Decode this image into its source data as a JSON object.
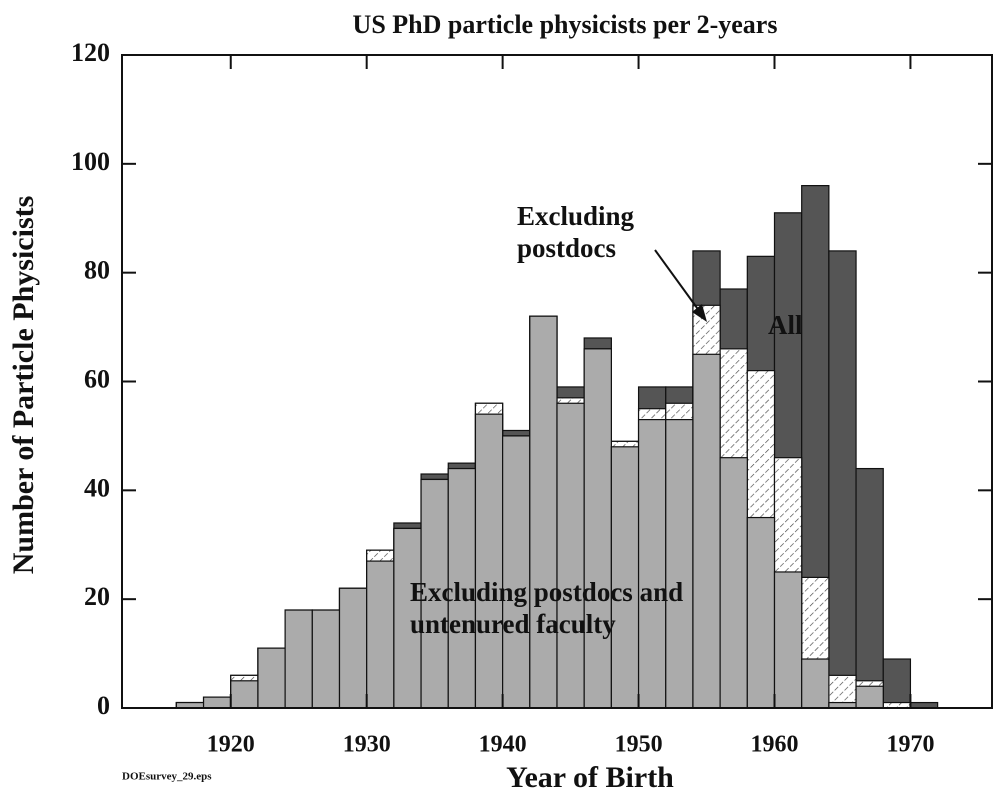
{
  "chart_data": {
    "type": "histogram",
    "title": "US PhD particle physicists per 2-years",
    "x_label": "Year of Birth",
    "y_label": "Number of Particle Physicists",
    "bins": [
      1916,
      1918,
      1920,
      1922,
      1924,
      1926,
      1928,
      1930,
      1932,
      1934,
      1936,
      1938,
      1940,
      1942,
      1944,
      1946,
      1948,
      1950,
      1952,
      1954,
      1956,
      1958,
      1960,
      1962,
      1964,
      1966,
      1968,
      1970,
      1972
    ],
    "series": [
      {
        "name": "All",
        "color": "#555555",
        "hatch": false,
        "values": [
          1,
          2,
          6,
          11,
          18,
          18,
          22,
          29,
          34,
          43,
          45,
          56,
          51,
          72,
          59,
          68,
          49,
          59,
          59,
          84,
          77,
          83,
          91,
          96,
          84,
          44,
          9,
          1
        ]
      },
      {
        "name": "Excluding postdocs",
        "color": "#ffffff",
        "hatch": true,
        "values": [
          1,
          2,
          6,
          11,
          18,
          18,
          22,
          29,
          33,
          42,
          44,
          56,
          50,
          72,
          57,
          66,
          49,
          55,
          56,
          74,
          66,
          62,
          46,
          24,
          6,
          5,
          1,
          0
        ]
      },
      {
        "name": "Excluding postdocs and untenured faculty",
        "color": "#ababab",
        "hatch": false,
        "values": [
          1,
          2,
          5,
          11,
          18,
          18,
          22,
          27,
          33,
          42,
          44,
          54,
          50,
          72,
          56,
          66,
          48,
          53,
          53,
          65,
          46,
          35,
          25,
          9,
          1,
          4,
          0,
          0
        ]
      }
    ],
    "xlim": [
      1912,
      1976
    ],
    "ylim": [
      0,
      120
    ],
    "xticks": [
      1920,
      1930,
      1940,
      1950,
      1960,
      1970
    ],
    "yticks": [
      0,
      20,
      40,
      60,
      80,
      100,
      120
    ],
    "annotations": [
      "DOEsurvey_29.eps"
    ]
  }
}
